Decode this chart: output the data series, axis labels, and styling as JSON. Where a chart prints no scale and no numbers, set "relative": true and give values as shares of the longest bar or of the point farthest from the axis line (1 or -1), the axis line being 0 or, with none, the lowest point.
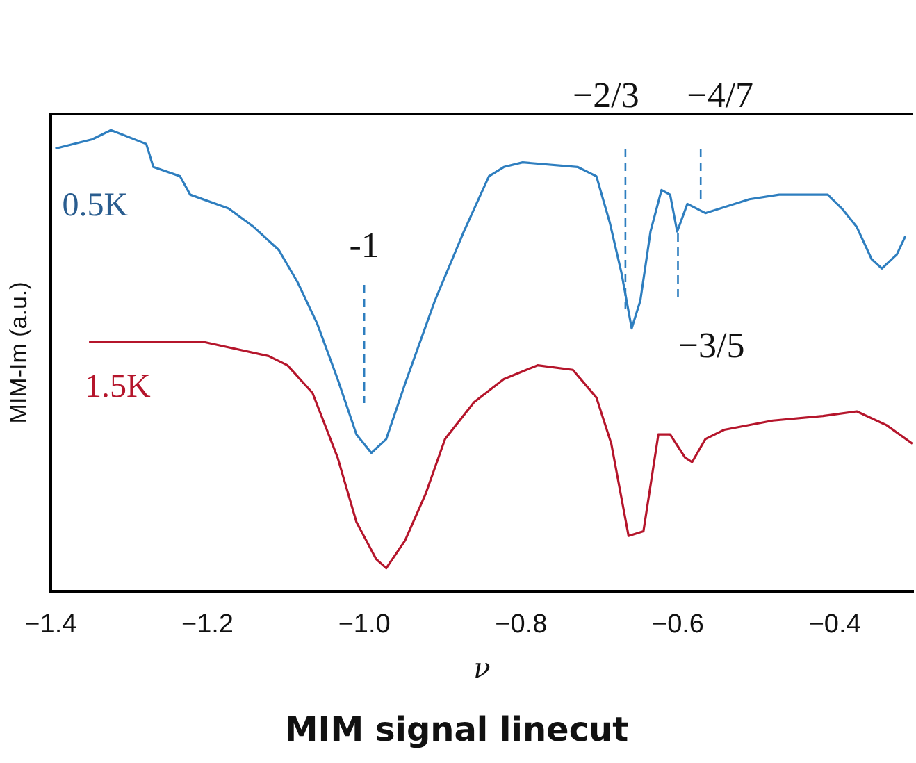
{
  "chart_data": {
    "type": "line",
    "title": "MIM signal linecut",
    "xlabel": "ν",
    "ylabel": "MIM-Im (a.u.)",
    "relative": true,
    "xlim": [
      -1.4,
      -0.3
    ],
    "xticks": [
      {
        "value": -1.4,
        "label": "−1.4"
      },
      {
        "value": -1.2,
        "label": "−1.2"
      },
      {
        "value": -1.0,
        "label": "−1.0"
      },
      {
        "value": -0.8,
        "label": "−0.8"
      },
      {
        "value": -0.6,
        "label": "−0.6"
      },
      {
        "value": -0.4,
        "label": "−0.4"
      }
    ],
    "grid": false,
    "legend": false,
    "marker": "none",
    "line_style": "solid",
    "series": [
      {
        "name": "0.5K",
        "color": "#2e7ebf",
        "x": [
          -1.394,
          -1.347,
          -1.323,
          -1.278,
          -1.269,
          -1.235,
          -1.222,
          -1.173,
          -1.141,
          -1.109,
          -1.085,
          -1.06,
          -1.034,
          -1.01,
          -0.991,
          -0.972,
          -0.948,
          -0.91,
          -0.873,
          -0.841,
          -0.822,
          -0.798,
          -0.728,
          -0.704,
          -0.687,
          -0.672,
          -0.659,
          -0.648,
          -0.635,
          -0.621,
          -0.61,
          -0.601,
          -0.588,
          -0.565,
          -0.509,
          -0.471,
          -0.409,
          -0.391,
          -0.372,
          -0.353,
          -0.34,
          -0.321,
          -0.31
        ],
        "values": [
          0.96,
          0.98,
          1.0,
          0.97,
          0.92,
          0.9,
          0.86,
          0.83,
          0.79,
          0.74,
          0.67,
          0.58,
          0.46,
          0.34,
          0.3,
          0.33,
          0.45,
          0.63,
          0.78,
          0.9,
          0.92,
          0.93,
          0.92,
          0.9,
          0.8,
          0.69,
          0.57,
          0.63,
          0.78,
          0.87,
          0.86,
          0.78,
          0.84,
          0.82,
          0.85,
          0.86,
          0.86,
          0.83,
          0.79,
          0.72,
          0.7,
          0.73,
          0.77
        ]
      },
      {
        "name": "1.5K",
        "color": "#b5152b",
        "x": [
          -1.351,
          -1.203,
          -1.122,
          -1.098,
          -1.066,
          -1.034,
          -1.01,
          -0.985,
          -0.972,
          -0.948,
          -0.922,
          -0.897,
          -0.86,
          -0.822,
          -0.779,
          -0.734,
          -0.704,
          -0.685,
          -0.663,
          -0.644,
          -0.625,
          -0.61,
          -0.591,
          -0.582,
          -0.565,
          -0.541,
          -0.479,
          -0.415,
          -0.372,
          -0.334,
          -0.301
        ],
        "values": [
          0.54,
          0.54,
          0.51,
          0.49,
          0.43,
          0.29,
          0.15,
          0.07,
          0.05,
          0.11,
          0.21,
          0.33,
          0.41,
          0.46,
          0.49,
          0.48,
          0.42,
          0.32,
          0.12,
          0.13,
          0.34,
          0.34,
          0.29,
          0.28,
          0.33,
          0.35,
          0.37,
          0.38,
          0.39,
          0.36,
          0.32
        ]
      }
    ],
    "ref_lines": [
      {
        "axis": "x",
        "value": -1,
        "label": "-1",
        "color": "#2e7ebf",
        "line_style": "dashed"
      },
      {
        "axis": "x",
        "value": -0.667,
        "label": "−2/3",
        "color": "#2e7ebf",
        "line_style": "dashed"
      },
      {
        "axis": "x",
        "value": -0.6,
        "label": "−3/5",
        "color": "#2e7ebf",
        "line_style": "dashed"
      },
      {
        "axis": "x",
        "value": -0.571,
        "label": "−4/7",
        "color": "#2e7ebf",
        "line_style": "dashed"
      }
    ]
  }
}
